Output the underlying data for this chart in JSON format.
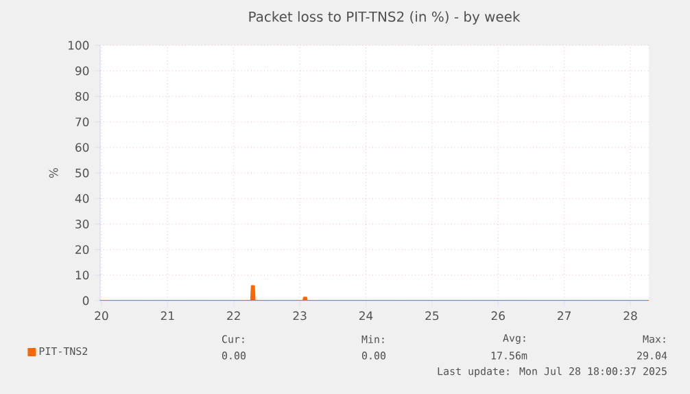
{
  "chart_data": {
    "type": "area",
    "title": "Packet loss to PIT-TNS2 (in %) - by week",
    "ylabel": "%",
    "xlim": [
      19.98,
      28.28
    ],
    "xticks": [
      20,
      21,
      22,
      23,
      24,
      25,
      26,
      27,
      28
    ],
    "ylim": [
      0,
      100
    ],
    "yticks": [
      0,
      10,
      20,
      30,
      40,
      50,
      60,
      70,
      80,
      90,
      100
    ],
    "grid": true,
    "legend": "bottom left",
    "series": [
      {
        "name": "PIT-TNS2",
        "color": "#ff6600",
        "x": [
          19.98,
          22.26,
          22.27,
          22.31,
          22.32,
          23.05,
          23.06,
          23.1,
          23.11,
          28.28
        ],
        "values": [
          0,
          0,
          5.8,
          5.8,
          0,
          0,
          1.3,
          1.3,
          0,
          0
        ]
      }
    ],
    "annotations": [
      "Cur:",
      "Min:",
      "Avg:",
      "Max:",
      "0.00",
      "0.00",
      "17.56m",
      "29.04",
      "Last update: Mon Jul 28 18:00:37 2025"
    ]
  }
}
